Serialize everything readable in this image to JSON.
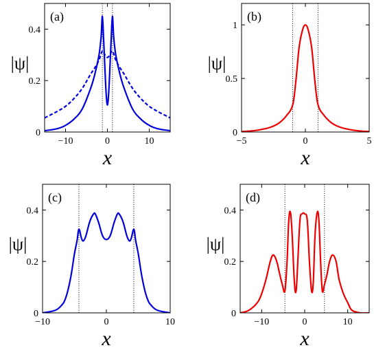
{
  "chart_data": [
    {
      "type": "line",
      "panel_label": "(a)",
      "xlabel": "x",
      "ylabel": "|ψ|",
      "xlim": [
        -15,
        15
      ],
      "ylim": [
        0,
        0.5
      ],
      "xticks": [
        -10,
        0,
        10
      ],
      "yticks": [
        0,
        0.2,
        0.4
      ],
      "ytick_labels": [
        "0",
        "0.2",
        "0.4"
      ],
      "vlines": [
        -1.2,
        1.2
      ],
      "series": [
        {
          "style": "solid",
          "color": "#0000dd",
          "x": [
            -15,
            -12,
            -10,
            -8,
            -6,
            -4,
            -3,
            -2,
            -1.5,
            -1.2,
            -0.9,
            -0.6,
            -0.3,
            0,
            0.3,
            0.6,
            0.9,
            1.2,
            1.5,
            2,
            3,
            4,
            6,
            8,
            10,
            12,
            15
          ],
          "y": [
            0.005,
            0.013,
            0.026,
            0.05,
            0.09,
            0.17,
            0.225,
            0.3,
            0.37,
            0.45,
            0.36,
            0.25,
            0.15,
            0.105,
            0.15,
            0.25,
            0.36,
            0.45,
            0.37,
            0.3,
            0.225,
            0.17,
            0.09,
            0.05,
            0.026,
            0.013,
            0.005
          ]
        },
        {
          "style": "dashed",
          "color": "#0000dd",
          "x": [
            -15,
            -12,
            -10,
            -8,
            -6,
            -4,
            -3,
            -2,
            -1.2,
            -0.6,
            0,
            0.6,
            1.2,
            2,
            3,
            4,
            6,
            8,
            10,
            12,
            15
          ],
          "y": [
            0.055,
            0.08,
            0.1,
            0.13,
            0.17,
            0.225,
            0.25,
            0.28,
            0.315,
            0.3,
            0.29,
            0.3,
            0.315,
            0.28,
            0.25,
            0.225,
            0.17,
            0.13,
            0.1,
            0.08,
            0.055
          ]
        }
      ]
    },
    {
      "type": "line",
      "panel_label": "(b)",
      "xlabel": "x",
      "ylabel": "|ψ|",
      "xlim": [
        -5,
        5
      ],
      "ylim": [
        0,
        1.2
      ],
      "xticks": [
        -5,
        0,
        5
      ],
      "yticks": [
        0,
        0.5,
        1
      ],
      "ytick_labels": [
        "0",
        "0.5",
        "1"
      ],
      "vlines": [
        -1,
        1
      ],
      "series": [
        {
          "style": "solid",
          "color": "#ee0000",
          "x": [
            -5,
            -4,
            -3,
            -2.5,
            -2,
            -1.5,
            -1,
            -0.75,
            -0.5,
            -0.25,
            0,
            0.25,
            0.5,
            0.75,
            1,
            1.5,
            2,
            2.5,
            3,
            4,
            5
          ],
          "y": [
            0.005,
            0.013,
            0.035,
            0.055,
            0.09,
            0.15,
            0.25,
            0.47,
            0.78,
            0.94,
            1.0,
            0.94,
            0.78,
            0.47,
            0.25,
            0.15,
            0.09,
            0.055,
            0.035,
            0.013,
            0.005
          ]
        }
      ]
    },
    {
      "type": "line",
      "panel_label": "(c)",
      "xlabel": "x",
      "ylabel": "|ψ|",
      "xlim": [
        -10,
        10
      ],
      "ylim": [
        0,
        0.5
      ],
      "xticks": [
        -10,
        0,
        10
      ],
      "yticks": [
        0,
        0.2,
        0.4
      ],
      "ytick_labels": [
        "0",
        "0.2",
        "0.4"
      ],
      "vlines": [
        -4.3,
        4.3
      ],
      "series": [
        {
          "style": "solid",
          "color": "#0000dd",
          "x": [
            -10,
            -8,
            -7,
            -6.5,
            -6,
            -5.5,
            -5,
            -4.6,
            -4.3,
            -3.9,
            -3.6,
            -3.2,
            -2.6,
            -2,
            -1.7,
            -1.2,
            -0.6,
            0,
            0.6,
            1.2,
            1.7,
            2,
            2.6,
            3.2,
            3.6,
            3.9,
            4.3,
            4.6,
            5,
            5.5,
            6,
            6.5,
            7,
            8,
            10
          ],
          "y": [
            0.0,
            0.01,
            0.03,
            0.05,
            0.09,
            0.15,
            0.23,
            0.28,
            0.325,
            0.29,
            0.28,
            0.3,
            0.355,
            0.385,
            0.383,
            0.35,
            0.3,
            0.285,
            0.3,
            0.35,
            0.383,
            0.385,
            0.355,
            0.3,
            0.28,
            0.29,
            0.325,
            0.28,
            0.23,
            0.15,
            0.09,
            0.05,
            0.03,
            0.01,
            0.0
          ]
        }
      ]
    },
    {
      "type": "line",
      "panel_label": "(d)",
      "xlabel": "x",
      "ylabel": "|ψ|",
      "xlim": [
        -15,
        15
      ],
      "ylim": [
        0,
        0.5
      ],
      "xticks": [
        -10,
        0,
        10
      ],
      "yticks": [
        0,
        0.2,
        0.4
      ],
      "ytick_labels": [
        "0",
        "0.2",
        "0.4"
      ],
      "vlines": [
        -4.6,
        4.6
      ],
      "series": [
        {
          "style": "solid",
          "color": "#ee0000",
          "x": [
            -15,
            -13,
            -11,
            -10,
            -9,
            -8,
            -7.3,
            -6.5,
            -5.8,
            -5.2,
            -4.6,
            -4.1,
            -3.7,
            -3.3,
            -2.9,
            -2.4,
            -2.0,
            -1.6,
            -1.1,
            -0.6,
            0,
            0.6,
            1.1,
            1.6,
            2.0,
            2.4,
            2.9,
            3.3,
            3.7,
            4.1,
            4.6,
            5.2,
            5.8,
            6.5,
            7.3,
            8,
            9,
            10,
            11,
            13,
            15
          ],
          "y": [
            0.0,
            0.01,
            0.04,
            0.075,
            0.13,
            0.2,
            0.225,
            0.2,
            0.15,
            0.11,
            0.085,
            0.2,
            0.36,
            0.39,
            0.3,
            0.12,
            0.085,
            0.2,
            0.36,
            0.385,
            0.385,
            0.36,
            0.2,
            0.085,
            0.12,
            0.3,
            0.39,
            0.36,
            0.2,
            0.085,
            0.11,
            0.15,
            0.2,
            0.225,
            0.2,
            0.13,
            0.075,
            0.04,
            0.01,
            0.0,
            0.0
          ]
        }
      ]
    }
  ]
}
